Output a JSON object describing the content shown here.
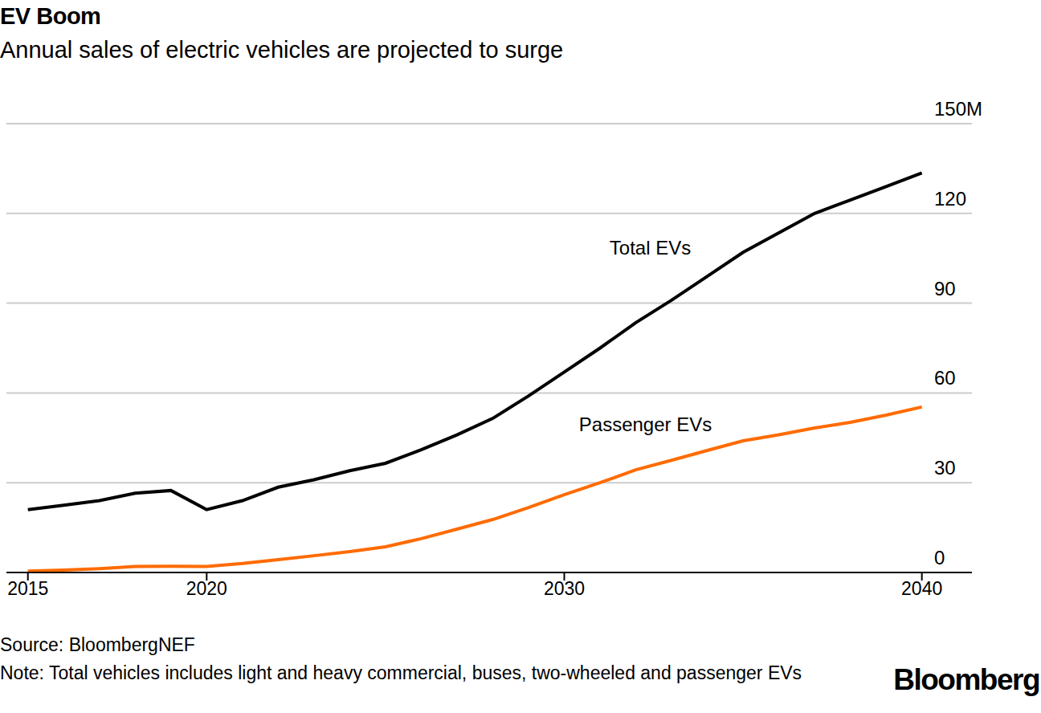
{
  "chart_data": {
    "type": "line",
    "title": "EV Boom",
    "subtitle": "Annual sales of electric vehicles are projected to surge",
    "x": [
      2015,
      2016,
      2017,
      2018,
      2019,
      2020,
      2021,
      2022,
      2023,
      2024,
      2025,
      2026,
      2027,
      2028,
      2029,
      2030,
      2031,
      2032,
      2033,
      2034,
      2035,
      2036,
      2037,
      2038,
      2039,
      2040
    ],
    "series": [
      {
        "name": "Total EVs",
        "color": "#000000",
        "values": [
          21,
          22.5,
          24,
          26.5,
          27.4,
          21,
          24,
          28.5,
          31,
          34,
          36.5,
          41,
          46,
          51.5,
          59,
          67,
          75,
          83.5,
          91,
          99,
          107,
          113.5,
          120,
          124.5,
          129,
          133.5
        ]
      },
      {
        "name": "Passenger EVs",
        "color": "#ff6b00",
        "values": [
          0.5,
          0.8,
          1.3,
          2,
          2.1,
          2,
          3,
          4.3,
          5.6,
          7,
          8.6,
          11.3,
          14.5,
          17.7,
          21.7,
          26,
          30,
          34.3,
          37.5,
          40.8,
          44,
          46,
          48.3,
          50.2,
          52.6,
          55.3
        ]
      }
    ],
    "xlim": [
      2014.4,
      2041.4
    ],
    "xticks": [
      2015,
      2020,
      2030,
      2040
    ],
    "ylim": [
      0,
      150
    ],
    "yticks": [
      0,
      30,
      60,
      90,
      120,
      {
        "value": 150,
        "label": "150M"
      }
    ],
    "grid": true,
    "source": "Source: BloombergNEF",
    "note": "Note: Total vehicles includes light and heavy commercial, buses, two-wheeled and passenger EVs",
    "brand": "Bloomberg"
  }
}
